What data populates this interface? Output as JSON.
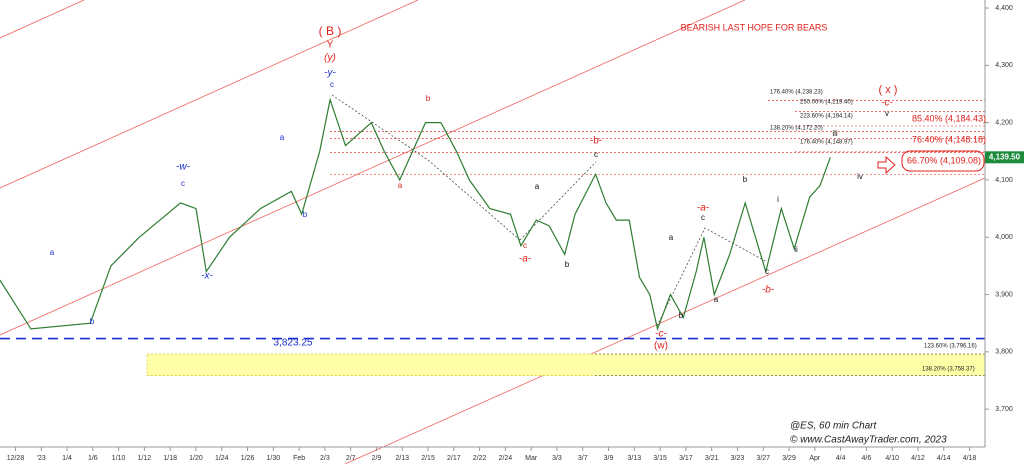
{
  "chart_data": {
    "type": "line",
    "title": "BEARISH LAST HOPE FOR BEARS",
    "xlim": [
      -0.6,
      37.6
    ],
    "xticks": [
      {
        "value": 0,
        "label": "12/28"
      },
      {
        "value": 1,
        "label": "'23"
      },
      {
        "value": 2,
        "label": "1/4"
      },
      {
        "value": 3,
        "label": "1/6"
      },
      {
        "value": 4,
        "label": "1/10"
      },
      {
        "value": 5,
        "label": "1/12"
      },
      {
        "value": 6,
        "label": "1/18"
      },
      {
        "value": 7,
        "label": "1/20"
      },
      {
        "value": 8,
        "label": "1/24"
      },
      {
        "value": 9,
        "label": "1/26"
      },
      {
        "value": 10,
        "label": "1/30"
      },
      {
        "value": 11,
        "label": "Feb"
      },
      {
        "value": 12,
        "label": "2/3"
      },
      {
        "value": 13,
        "label": "2/7"
      },
      {
        "value": 14,
        "label": "2/9"
      },
      {
        "value": 15,
        "label": "2/13"
      },
      {
        "value": 16,
        "label": "2/15"
      },
      {
        "value": 17,
        "label": "2/17"
      },
      {
        "value": 18,
        "label": "2/22"
      },
      {
        "value": 19,
        "label": "2/24"
      },
      {
        "value": 20,
        "label": "Mar"
      },
      {
        "value": 21,
        "label": "3/3"
      },
      {
        "value": 22,
        "label": "3/7"
      },
      {
        "value": 23,
        "label": "3/9"
      },
      {
        "value": 24,
        "label": "3/13"
      },
      {
        "value": 25,
        "label": "3/15"
      },
      {
        "value": 26,
        "label": "3/17"
      },
      {
        "value": 27,
        "label": "3/21"
      },
      {
        "value": 28,
        "label": "3/23"
      },
      {
        "value": 29,
        "label": "3/27"
      },
      {
        "value": 30,
        "label": "3/29"
      },
      {
        "value": 31,
        "label": "Apr"
      },
      {
        "value": 32,
        "label": "4/4"
      },
      {
        "value": 33,
        "label": "4/6"
      },
      {
        "value": 34,
        "label": "4/10"
      },
      {
        "value": 35,
        "label": "4/12"
      },
      {
        "value": 36,
        "label": "4/14"
      },
      {
        "value": 37,
        "label": "4/18"
      }
    ],
    "ylim": [
      3634,
      4414
    ],
    "yticks": [
      {
        "value": 3700,
        "label": "3,700"
      },
      {
        "value": 3800,
        "label": "3,800"
      },
      {
        "value": 3900,
        "label": "3,900"
      },
      {
        "value": 4000,
        "label": "4,000"
      },
      {
        "value": 4100,
        "label": "4,100"
      },
      {
        "value": 4200,
        "label": "4,200"
      },
      {
        "value": 4300,
        "label": "4,300"
      },
      {
        "value": 4400,
        "label": "4,400"
      }
    ],
    "series": [
      {
        "name": "ES",
        "color": "#2e7d32",
        "x": [
          -0.6,
          0.6,
          2.9,
          3.7,
          4.8,
          6.4,
          7.0,
          7.4,
          8.3,
          9.5,
          10.7,
          11.1,
          11.8,
          12.2,
          12.8,
          13.8,
          14.3,
          14.9,
          15.9,
          16.5,
          17.1,
          17.6,
          18.4,
          19.2,
          19.6,
          20.2,
          20.7,
          21.3,
          21.7,
          22.5,
          22.9,
          23.3,
          23.8,
          24.2,
          24.6,
          24.9,
          25.4,
          25.9,
          26.4,
          26.7,
          27.1,
          27.7,
          28.3,
          28.7,
          29.1,
          29.7,
          30.2,
          30.8,
          31.2,
          31.6
        ],
        "values": [
          3925,
          3840,
          3850,
          3950,
          4000,
          4060,
          4050,
          3940,
          4000,
          4050,
          4080,
          4040,
          4150,
          4240,
          4160,
          4200,
          4150,
          4100,
          4200,
          4200,
          4150,
          4100,
          4050,
          4040,
          3985,
          4030,
          4020,
          3970,
          4040,
          4110,
          4060,
          4030,
          4030,
          3930,
          3900,
          3840,
          3900,
          3860,
          3940,
          4000,
          3900,
          3970,
          4060,
          4000,
          3940,
          4050,
          3980,
          4070,
          4090,
          4139.5
        ]
      }
    ],
    "last": {
      "value": 4139.5,
      "label": "4,139.50"
    },
    "levels": [
      {
        "value": 4238.23,
        "label": "176.40% (4,238.23)"
      },
      {
        "value": 4219.4,
        "label": "250.00% (4,219.40)"
      },
      {
        "value": 4194.14,
        "label": "223.60% (4,194.14)"
      },
      {
        "value": 4184.43,
        "label": "85.40% (4,184.43)"
      },
      {
        "value": 4172.2,
        "label": "138.20% (4,172.20)"
      },
      {
        "value": 4148.97,
        "label": "176.40% (4,148.97)"
      },
      {
        "value": 4148.18,
        "label": "76.40% (4,148.18)"
      },
      {
        "value": 4109.08,
        "label": "66.70% (4,109.08)"
      },
      {
        "value": 3823.25,
        "label": "3,823.25"
      },
      {
        "value": 3796.16,
        "label": "123.60% (3,796.16)"
      },
      {
        "value": 3758.37,
        "label": "138.20% (3,758.37)"
      }
    ],
    "annotations": [
      "( B )",
      "Y",
      "(y)",
      "-y-",
      "c",
      "a",
      "-w-",
      "c",
      "b",
      "-x-",
      "a",
      "b",
      "b",
      "a",
      "-b-",
      "c",
      "a",
      "c",
      "-a-",
      "b",
      "( x )",
      "-c-",
      "v",
      "iii",
      "iv",
      "i",
      "ii",
      "c",
      "-b-",
      "b",
      "-a-",
      "c",
      "a",
      "a",
      "b",
      "-c-",
      "(w)"
    ],
    "footer": [
      "@ES, 60 min Chart",
      "© www.CastAwayTrader.com, 2023"
    ]
  }
}
